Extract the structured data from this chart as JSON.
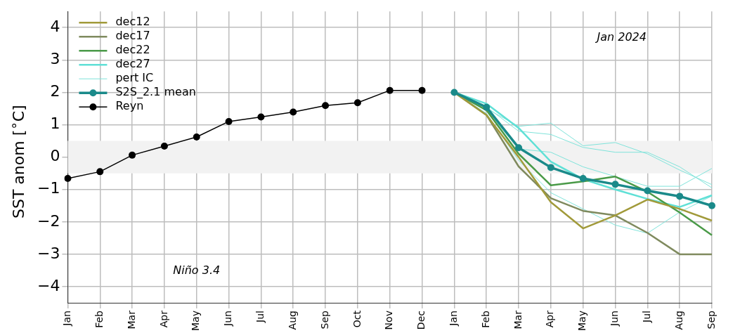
{
  "chart_data": {
    "type": "line",
    "ylabel": "SST anom [$^{∘}$C]",
    "annotations": [
      "Jan 2024",
      "Niño 3.4"
    ],
    "categories": [
      "Jan",
      "Feb",
      "Mar",
      "Apr",
      "May",
      "Jun",
      "Jul",
      "Aug",
      "Sep",
      "Oct",
      "Nov",
      "Dec",
      "Jan",
      "Feb",
      "Mar",
      "Apr",
      "May",
      "Jun",
      "Jul",
      "Aug",
      "Sep"
    ],
    "ylim": [
      -4.5,
      4.5
    ],
    "yticks": [
      {
        "value": -4,
        "label": "−4"
      },
      {
        "value": -3,
        "label": "−3"
      },
      {
        "value": -2,
        "label": "−2"
      },
      {
        "value": -1,
        "label": "−1"
      },
      0,
      1,
      2,
      3,
      4
    ],
    "grid": true,
    "legend": "top left",
    "bands": [
      {
        "axis": "y",
        "from": -0.5,
        "to": 0.5,
        "color": "#f2f2f2"
      }
    ],
    "series": [
      {
        "name": "dec12",
        "color": "#a19a3a",
        "marker": "none",
        "values": [
          null,
          null,
          null,
          null,
          null,
          null,
          null,
          null,
          null,
          null,
          null,
          null,
          2.0,
          1.3,
          0.0,
          -1.39,
          -2.2,
          -1.8,
          -1.31,
          -1.6,
          -1.96
        ]
      },
      {
        "name": "dec17",
        "color": "#7f8a5e",
        "marker": "none",
        "values": [
          null,
          null,
          null,
          null,
          null,
          null,
          null,
          null,
          null,
          null,
          null,
          null,
          2.0,
          1.3,
          -0.29,
          -1.27,
          -1.66,
          -1.8,
          -2.34,
          -3.0,
          -3.0
        ]
      },
      {
        "name": "dec22",
        "color": "#4a9a48",
        "marker": "none",
        "values": [
          null,
          null,
          null,
          null,
          null,
          null,
          null,
          null,
          null,
          null,
          null,
          null,
          2.0,
          1.45,
          0.1,
          -0.87,
          -0.75,
          -0.6,
          -1.07,
          -1.71,
          -2.41
        ]
      },
      {
        "name": "dec27",
        "color": "#5fe0d6",
        "marker": "none",
        "values": [
          null,
          null,
          null,
          null,
          null,
          null,
          null,
          null,
          null,
          null,
          null,
          null,
          2.0,
          1.65,
          0.9,
          -0.14,
          -0.68,
          -1.0,
          -1.29,
          -1.54,
          -1.18
        ]
      },
      {
        "name": "pert IC",
        "color": "#7fe3da",
        "marker": "none",
        "values": [
          null,
          null,
          null,
          null,
          null,
          null,
          null,
          null,
          null,
          null,
          null,
          null,
          2.0,
          1.5,
          0.95,
          1.05,
          0.35,
          0.45,
          0.1,
          -0.4,
          -0.85
        ]
      },
      {
        "color": "#7fe3da",
        "marker": "none",
        "values": [
          null,
          null,
          null,
          null,
          null,
          null,
          null,
          null,
          null,
          null,
          null,
          null,
          2.0,
          1.55,
          0.8,
          0.7,
          0.3,
          0.15,
          0.15,
          -0.3,
          -0.95
        ]
      },
      {
        "color": "#7fe3da",
        "marker": "none",
        "values": [
          null,
          null,
          null,
          null,
          null,
          null,
          null,
          null,
          null,
          null,
          null,
          null,
          2.0,
          1.45,
          0.25,
          0.15,
          -0.3,
          -0.6,
          -0.9,
          -0.9,
          -0.35
        ]
      },
      {
        "color": "#7fe3da",
        "marker": "none",
        "values": [
          null,
          null,
          null,
          null,
          null,
          null,
          null,
          null,
          null,
          null,
          null,
          null,
          2.0,
          1.35,
          -0.1,
          -1.1,
          -1.6,
          -2.1,
          -2.35,
          -1.7,
          -1.2
        ]
      },
      {
        "name": "S2S_2.1 mean",
        "color": "#1a8a8a",
        "marker": "circle",
        "values": [
          null,
          null,
          null,
          null,
          null,
          null,
          null,
          null,
          null,
          null,
          null,
          null,
          2.0,
          1.54,
          0.29,
          -0.32,
          -0.66,
          -0.84,
          -1.04,
          -1.21,
          -1.5
        ]
      },
      {
        "name": "Reyn",
        "color": "#000000",
        "marker": "circle",
        "values": [
          -0.66,
          -0.45,
          0.06,
          0.34,
          0.62,
          1.1,
          1.24,
          1.39,
          1.59,
          1.68,
          2.06,
          2.06,
          null,
          null,
          null,
          null,
          null,
          null,
          null,
          null,
          null
        ]
      }
    ]
  }
}
